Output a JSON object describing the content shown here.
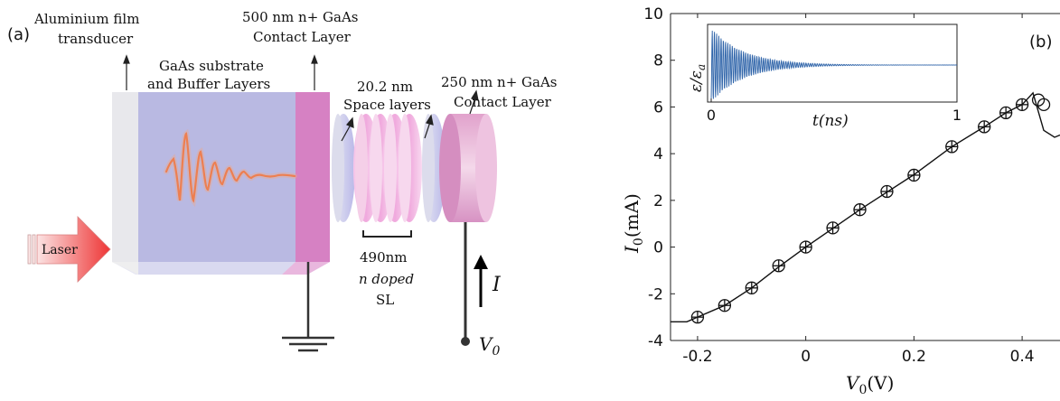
{
  "panel_a": {
    "label": "(a)",
    "laser": "Laser",
    "aluminium_line1": "Aluminium film",
    "aluminium_line2": "transducer",
    "substrate_line1": "GaAs substrate",
    "substrate_line2": "and Buffer Layers",
    "contact500_line1": "500 nm n+ GaAs",
    "contact500_line2": "Contact Layer",
    "spacer_line1": "20.2 nm",
    "spacer_line2": "Space layers",
    "contact250_line1": "250 nm n+ GaAs",
    "contact250_line2": "Contact Layer",
    "sl_line1": "490nm",
    "sl_line2": "n doped",
    "sl_line3": "SL",
    "current": "I",
    "voltage": "V",
    "voltage_sub": "0"
  },
  "panel_b": {
    "label": "(b)",
    "ylabel_main": "I",
    "ylabel_sub": "0",
    "ylabel_unit": "(mA)",
    "xlabel_main": "V",
    "xlabel_sub": "0",
    "xlabel_unit": "(V)",
    "inset_ylabel": "ε/ε",
    "inset_ylabel_sub": "a",
    "inset_xlabel": "t(ns)"
  },
  "chart_data": [
    {
      "type": "line",
      "xlim": [
        -0.25,
        0.47
      ],
      "ylim": [
        -4,
        10
      ],
      "x_ticks": [
        -0.2,
        0,
        0.2,
        0.4
      ],
      "x_tick_labels": [
        "-0.2",
        "0",
        "0.2",
        "0.4"
      ],
      "y_ticks": [
        -4,
        -2,
        0,
        2,
        4,
        6,
        8,
        10
      ],
      "y_tick_labels": [
        "-4",
        "-2",
        "0",
        "2",
        "4",
        "6",
        "8",
        "10"
      ],
      "grid": false,
      "series": [
        {
          "style": "solid-line",
          "x": [
            -0.25,
            -0.22,
            -0.2,
            -0.15,
            -0.1,
            -0.05,
            0,
            0.05,
            0.1,
            0.15,
            0.2,
            0.27,
            0.33,
            0.37,
            0.4,
            0.42,
            0.44,
            0.46,
            0.47
          ],
          "y": [
            -3.2,
            -3.2,
            -3.0,
            -2.5,
            -1.75,
            -0.85,
            0.0,
            0.8,
            1.6,
            2.35,
            3.1,
            4.3,
            5.15,
            5.75,
            6.1,
            6.6,
            5.0,
            4.7,
            4.8
          ]
        },
        {
          "style": "circle-plus-markers",
          "x": [
            -0.2,
            -0.15,
            -0.1,
            -0.05,
            0,
            0.05,
            0.1,
            0.15,
            0.2,
            0.27,
            0.33,
            0.37,
            0.4
          ],
          "y": [
            -3.0,
            -2.5,
            -1.75,
            -0.8,
            0.0,
            0.82,
            1.6,
            2.38,
            3.08,
            4.3,
            5.15,
            5.75,
            6.1
          ]
        },
        {
          "style": "open-circle-markers",
          "x": [
            0.43,
            0.44
          ],
          "y": [
            6.3,
            6.1
          ]
        }
      ]
    },
    {
      "type": "line",
      "inset": true,
      "xlim": [
        0,
        1
      ],
      "x_ticks": [
        0,
        1
      ],
      "x_tick_labels": [
        "0",
        "1"
      ],
      "y_ticks": [],
      "waveform": {
        "kind": "damped-oscillation",
        "color": "#2c62a8",
        "start_amplitude": 1.0,
        "settled_level": 0.5,
        "settle_time": 0.55
      }
    }
  ]
}
